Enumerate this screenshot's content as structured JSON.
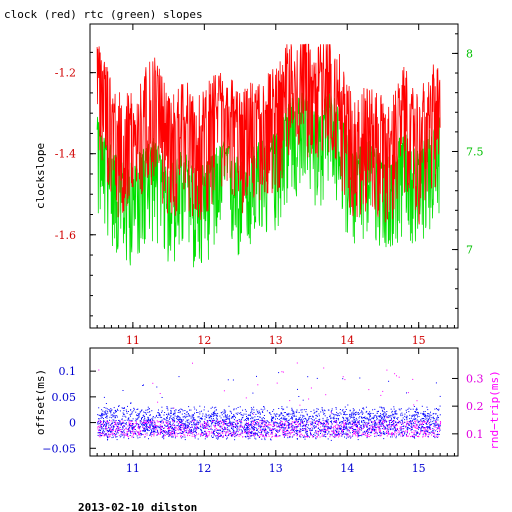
{
  "title": "clock (red) rtc (green) slopes",
  "footer": "2013-02-10 dilston",
  "chart_data": [
    {
      "type": "line",
      "xlim": [
        10.4,
        15.55
      ],
      "x_ticks": [
        11,
        12,
        13,
        14,
        15
      ],
      "ylabel": "clockslope",
      "ylim": [
        -1.83,
        -1.08
      ],
      "y_ticks": [
        "-1.2",
        "-1.4",
        "-1.6"
      ],
      "y2lim": [
        6.6,
        8.15
      ],
      "y2_ticks": [
        "8",
        "7.5",
        "7"
      ],
      "series": [
        {
          "axis": "left",
          "color": "#ff0000",
          "x": [
            10.5,
            10.6,
            10.7,
            10.8,
            10.9,
            11.0,
            11.1,
            11.2,
            11.3,
            11.4,
            11.5,
            11.6,
            11.7,
            11.8,
            11.9,
            12.0,
            12.1,
            12.2,
            12.3,
            12.4,
            12.5,
            12.6,
            12.7,
            12.8,
            12.9,
            13.0,
            13.1,
            13.2,
            13.3,
            13.4,
            13.5,
            13.6,
            13.7,
            13.8,
            13.9,
            14.0,
            14.1,
            14.2,
            14.3,
            14.4,
            14.5,
            14.6,
            14.7,
            14.8,
            14.9,
            15.0,
            15.1,
            15.2,
            15.3
          ],
          "y": [
            -1.24,
            -1.27,
            -1.32,
            -1.36,
            -1.37,
            -1.35,
            -1.33,
            -1.3,
            -1.28,
            -1.32,
            -1.38,
            -1.36,
            -1.32,
            -1.35,
            -1.38,
            -1.36,
            -1.33,
            -1.31,
            -1.3,
            -1.33,
            -1.37,
            -1.35,
            -1.33,
            -1.32,
            -1.31,
            -1.3,
            -1.28,
            -1.21,
            -1.23,
            -1.2,
            -1.22,
            -1.25,
            -1.22,
            -1.2,
            -1.28,
            -1.33,
            -1.37,
            -1.36,
            -1.34,
            -1.36,
            -1.38,
            -1.39,
            -1.35,
            -1.3,
            -1.35,
            -1.38,
            -1.32,
            -1.3,
            -1.28
          ]
        },
        {
          "axis": "right",
          "color": "#00e000",
          "x": [
            10.5,
            10.6,
            10.7,
            10.8,
            10.9,
            11.0,
            11.1,
            11.2,
            11.3,
            11.4,
            11.5,
            11.6,
            11.7,
            11.8,
            11.9,
            12.0,
            12.1,
            12.2,
            12.3,
            12.4,
            12.5,
            12.6,
            12.7,
            12.8,
            12.9,
            13.0,
            13.1,
            13.2,
            13.3,
            13.4,
            13.5,
            13.6,
            13.7,
            13.8,
            13.9,
            14.0,
            14.1,
            14.2,
            14.3,
            14.4,
            14.5,
            14.6,
            14.7,
            14.8,
            14.9,
            15.0,
            15.1,
            15.2,
            15.3
          ],
          "y": [
            7.58,
            7.52,
            7.44,
            7.37,
            7.33,
            7.35,
            7.4,
            7.44,
            7.48,
            7.42,
            7.33,
            7.36,
            7.42,
            7.36,
            7.3,
            7.34,
            7.4,
            7.44,
            7.46,
            7.42,
            7.35,
            7.4,
            7.44,
            7.46,
            7.48,
            7.52,
            7.58,
            7.7,
            7.67,
            7.72,
            7.68,
            7.6,
            7.68,
            7.72,
            7.6,
            7.5,
            7.42,
            7.44,
            7.48,
            7.44,
            7.4,
            7.38,
            7.45,
            7.52,
            7.45,
            7.4,
            7.5,
            7.55,
            7.6
          ]
        }
      ]
    },
    {
      "type": "scatter",
      "xlim": [
        10.4,
        15.55
      ],
      "x_ticks": [
        11,
        12,
        13,
        14,
        15
      ],
      "ylabel": "offset(ms)",
      "ylim": [
        -0.065,
        0.145
      ],
      "y_ticks": [
        "0.1",
        "0.05",
        "0",
        "−0.05"
      ],
      "y2label": "rnd−trip(ms)",
      "y2lim": [
        0.02,
        0.41
      ],
      "y2_ticks": [
        "0.3",
        "0.2",
        "0.1"
      ],
      "series": [
        {
          "axis": "left",
          "color": "#0000ff",
          "x": [
            10.5,
            15.3
          ],
          "y": [
            -0.025,
            0.025
          ]
        },
        {
          "axis": "right",
          "color": "#ff00ff",
          "x": [
            10.5,
            15.3
          ],
          "y": [
            0.1,
            0.2
          ]
        }
      ]
    }
  ]
}
